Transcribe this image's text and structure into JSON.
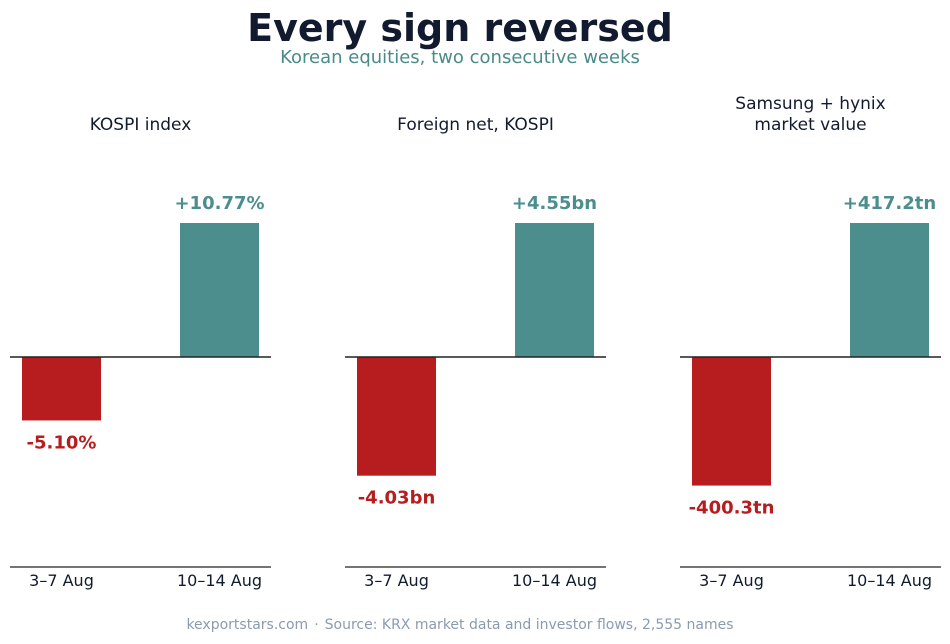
{
  "title": "Every sign reversed",
  "subtitle": "Korean equities, two consecutive weeks",
  "footer": {
    "site": "kexportstars.com",
    "separator": "·",
    "source": "Source: KRX market data and investor flows, 2,555 names"
  },
  "colors": {
    "negative": "#b71c1e",
    "positive": "#4b8e8d",
    "axis": "#222222",
    "title": "#111a2e"
  },
  "chart_data": [
    {
      "type": "bar",
      "title": [
        "KOSPI index"
      ],
      "categories": [
        "3–7 Aug",
        "10–14 Aug"
      ],
      "values": [
        -5.1,
        10.77
      ],
      "value_labels": [
        "-5.10%",
        "+10.77%"
      ],
      "unit": "%",
      "legend": "none",
      "grid": false
    },
    {
      "type": "bar",
      "title": [
        "Foreign net, KOSPI"
      ],
      "categories": [
        "3–7 Aug",
        "10–14 Aug"
      ],
      "values": [
        -4.03,
        4.55
      ],
      "value_labels": [
        "-4.03bn",
        "+4.55bn"
      ],
      "unit": "bn",
      "legend": "none",
      "grid": false
    },
    {
      "type": "bar",
      "title": [
        "Samsung + hynix",
        "market value"
      ],
      "categories": [
        "3–7 Aug",
        "10–14 Aug"
      ],
      "values": [
        -400.3,
        417.2
      ],
      "value_labels": [
        "-400.3tn",
        "+417.2tn"
      ],
      "unit": "tn",
      "legend": "none",
      "grid": false
    }
  ]
}
